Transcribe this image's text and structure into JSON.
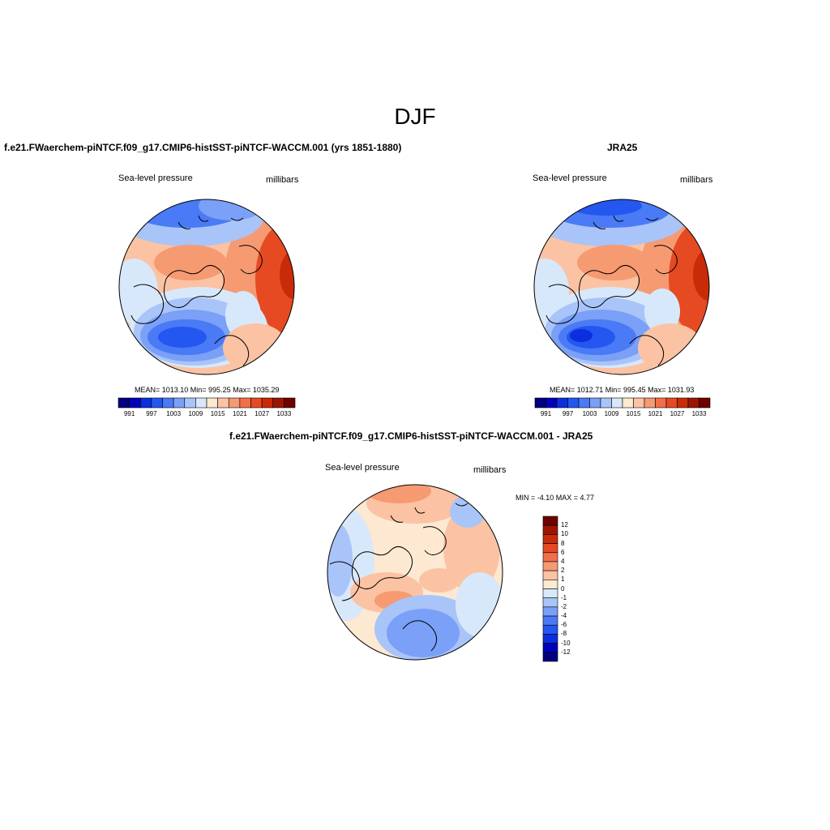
{
  "page": {
    "title": "DJF"
  },
  "panels": {
    "model": {
      "title": "f.e21.FWaerchem-piNTCF.f09_g17.CMIP6-histSST-piNTCF-WACCM.001 (yrs 1851-1880)",
      "left_label": "Sea-level pressure",
      "right_label": "millibars",
      "stats": "MEAN= 1013.10   Min= 995.25   Max= 1035.29"
    },
    "obs": {
      "title": "JRA25",
      "left_label": "Sea-level pressure",
      "right_label": "millibars",
      "stats": "MEAN= 1012.71   Min= 995.45   Max= 1031.93"
    },
    "diff": {
      "title": "f.e21.FWaerchem-piNTCF.f09_g17.CMIP6-histSST-piNTCF-WACCM.001 - JRA25",
      "left_label": "Sea-level pressure",
      "right_label": "millibars",
      "minmax": "MIN =  -4.10 MAX =   4.77"
    }
  },
  "colorbars": {
    "absolute": {
      "colors": [
        "#00007f",
        "#0000b8",
        "#0a2ee0",
        "#2457f0",
        "#4a7af5",
        "#7aa0f7",
        "#a9c4f8",
        "#d8e8fb",
        "#fde8d2",
        "#fbc3a3",
        "#f69a72",
        "#f0704a",
        "#e64a22",
        "#c92a08",
        "#9c1500",
        "#6e0000"
      ],
      "ticks": [
        "991",
        "997",
        "1003",
        "1009",
        "1015",
        "1021",
        "1027",
        "1033"
      ]
    },
    "difference": {
      "colors": [
        "#6e0000",
        "#9c1500",
        "#c92a08",
        "#e64a22",
        "#f0704a",
        "#f69a72",
        "#fbc3a3",
        "#fde8d2",
        "#d8e8fb",
        "#a9c4f8",
        "#7aa0f7",
        "#4a7af5",
        "#2457f0",
        "#0a2ee0",
        "#0000b8",
        "#00007f"
      ],
      "ticks": [
        "12",
        "10",
        "8",
        "6",
        "4",
        "2",
        "1",
        "0",
        "-1",
        "-2",
        "-4",
        "-6",
        "-8",
        "-10",
        "-12"
      ]
    }
  }
}
